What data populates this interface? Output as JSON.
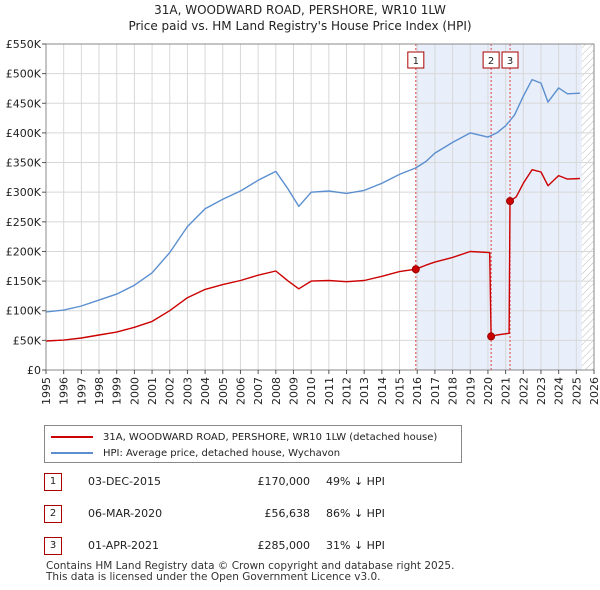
{
  "chart_data": {
    "type": "line",
    "title": "31A, WOODWARD ROAD, PERSHORE, WR10 1LW",
    "subtitle": "Price paid vs. HM Land Registry's House Price Index (HPI)",
    "xlim": [
      1995,
      2026
    ],
    "ylim": [
      0,
      550000
    ],
    "x_ticks": [
      "1995",
      "1996",
      "1997",
      "1998",
      "1999",
      "2000",
      "2001",
      "2002",
      "2003",
      "2004",
      "2005",
      "2006",
      "2007",
      "2008",
      "2009",
      "2010",
      "2011",
      "2012",
      "2013",
      "2014",
      "2015",
      "2016",
      "2017",
      "2018",
      "2019",
      "2020",
      "2021",
      "2022",
      "2023",
      "2024",
      "2025",
      "2026"
    ],
    "y_ticks": [
      {
        "value": 0,
        "label": "£0"
      },
      {
        "value": 50000,
        "label": "£50K"
      },
      {
        "value": 100000,
        "label": "£100K"
      },
      {
        "value": 150000,
        "label": "£150K"
      },
      {
        "value": 200000,
        "label": "£200K"
      },
      {
        "value": 250000,
        "label": "£250K"
      },
      {
        "value": 300000,
        "label": "£300K"
      },
      {
        "value": 350000,
        "label": "£350K"
      },
      {
        "value": 400000,
        "label": "£400K"
      },
      {
        "value": 450000,
        "label": "£450K"
      },
      {
        "value": 500000,
        "label": "£500K"
      },
      {
        "value": 550000,
        "label": "£550K"
      }
    ],
    "grid": true,
    "shaded_region": [
      2015.92,
      2025.3
    ],
    "hatched_region": [
      2025.3,
      2026
    ],
    "series": [
      {
        "name": "31A, WOODWARD ROAD, PERSHORE, WR10 1LW (detached house)",
        "color": "#cc0000",
        "points": [
          [
            1995,
            49000
          ],
          [
            1996,
            50500
          ],
          [
            1997,
            54000
          ],
          [
            1998,
            59000
          ],
          [
            1999,
            64000
          ],
          [
            2000,
            72000
          ],
          [
            2001,
            82000
          ],
          [
            2002,
            100000
          ],
          [
            2003,
            122000
          ],
          [
            2004,
            136000
          ],
          [
            2005,
            144000
          ],
          [
            2006,
            151000
          ],
          [
            2007,
            160000
          ],
          [
            2008,
            167000
          ],
          [
            2008.7,
            150000
          ],
          [
            2009.3,
            137000
          ],
          [
            2010,
            150000
          ],
          [
            2011,
            151000
          ],
          [
            2012,
            149000
          ],
          [
            2013,
            151000
          ],
          [
            2014,
            158000
          ],
          [
            2015,
            166000
          ],
          [
            2015.92,
            170000
          ],
          [
            2016.5,
            177000
          ],
          [
            2017,
            182000
          ],
          [
            2018,
            190000
          ],
          [
            2019,
            200000
          ],
          [
            2020.1,
            198000
          ],
          [
            2020.18,
            56638
          ],
          [
            2020.5,
            59000
          ],
          [
            2021.2,
            62000
          ],
          [
            2021.25,
            285000
          ],
          [
            2021.6,
            292000
          ],
          [
            2022,
            315000
          ],
          [
            2022.5,
            338000
          ],
          [
            2023,
            334000
          ],
          [
            2023.4,
            311000
          ],
          [
            2024,
            328000
          ],
          [
            2024.5,
            322000
          ],
          [
            2025.2,
            323000
          ]
        ]
      },
      {
        "name": "HPI: Average price, detached house, Wychavon",
        "color": "#5b8fd0",
        "points": [
          [
            1995,
            98000
          ],
          [
            1996,
            101000
          ],
          [
            1997,
            108000
          ],
          [
            1998,
            118000
          ],
          [
            1999,
            128000
          ],
          [
            2000,
            143000
          ],
          [
            2001,
            164000
          ],
          [
            2002,
            198000
          ],
          [
            2003,
            242000
          ],
          [
            2004,
            272000
          ],
          [
            2005,
            288000
          ],
          [
            2006,
            302000
          ],
          [
            2007,
            320000
          ],
          [
            2008,
            335000
          ],
          [
            2008.7,
            305000
          ],
          [
            2009.3,
            276000
          ],
          [
            2010,
            300000
          ],
          [
            2011,
            302000
          ],
          [
            2012,
            298000
          ],
          [
            2013,
            303000
          ],
          [
            2014,
            315000
          ],
          [
            2015,
            330000
          ],
          [
            2015.92,
            341000
          ],
          [
            2016.5,
            352000
          ],
          [
            2017,
            366000
          ],
          [
            2018,
            384000
          ],
          [
            2019,
            400000
          ],
          [
            2020,
            393000
          ],
          [
            2020.5,
            400000
          ],
          [
            2021,
            412000
          ],
          [
            2021.5,
            430000
          ],
          [
            2022,
            462000
          ],
          [
            2022.5,
            490000
          ],
          [
            2023,
            484000
          ],
          [
            2023.4,
            452000
          ],
          [
            2024,
            476000
          ],
          [
            2024.5,
            466000
          ],
          [
            2025.2,
            467000
          ]
        ]
      }
    ],
    "markers": [
      {
        "label": "1",
        "x": 2015.92,
        "y": 170000
      },
      {
        "label": "2",
        "x": 2020.18,
        "y": 56638
      },
      {
        "label": "3",
        "x": 2021.25,
        "y": 285000
      }
    ]
  },
  "legend": {
    "red_label": "31A, WOODWARD ROAD, PERSHORE, WR10 1LW (detached house)",
    "blue_label": "HPI: Average price, detached house, Wychavon"
  },
  "transactions": [
    {
      "num": "1",
      "date": "03-DEC-2015",
      "price": "£170,000",
      "hpi": "49% ↓ HPI"
    },
    {
      "num": "2",
      "date": "06-MAR-2020",
      "price": "£56,638",
      "hpi": "86% ↓ HPI"
    },
    {
      "num": "3",
      "date": "01-APR-2021",
      "price": "£285,000",
      "hpi": "31% ↓ HPI"
    }
  ],
  "footer": {
    "line1": "Contains HM Land Registry data © Crown copyright and database right 2025.",
    "line2": "This data is licensed under the Open Government Licence v3.0."
  }
}
